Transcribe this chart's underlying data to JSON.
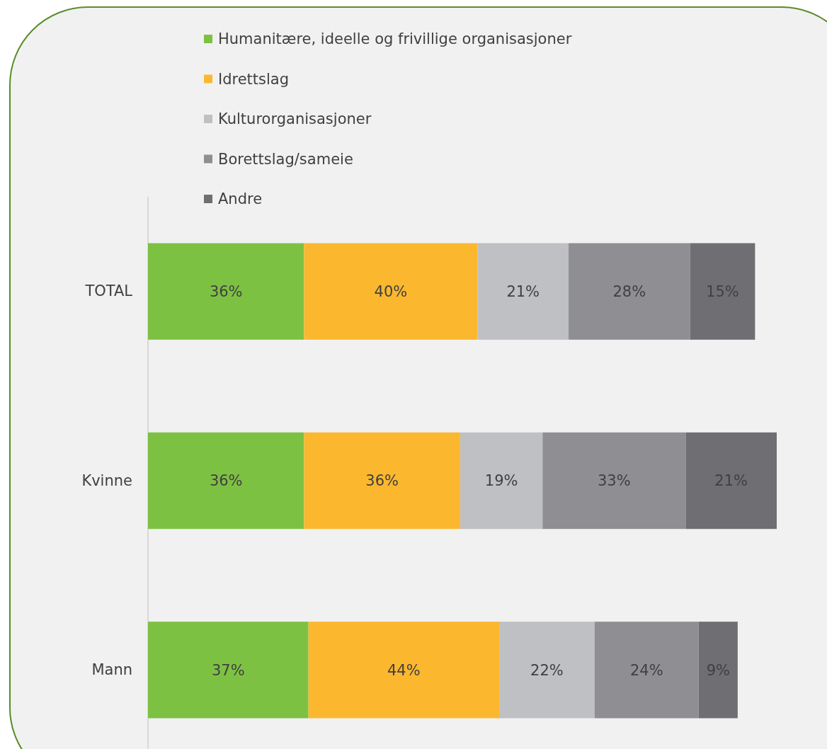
{
  "chart_data": {
    "type": "bar",
    "orientation": "horizontal",
    "stacked": true,
    "legend": "top",
    "categories": [
      "TOTAL",
      "Kvinne",
      "Mann"
    ],
    "series": [
      {
        "name": "Humanitære, ideelle og frivillige organisasjoner",
        "color": "#7dc143",
        "values": [
          36,
          36,
          37
        ],
        "value_labels": [
          "36%",
          "36%",
          "37%"
        ]
      },
      {
        "name": "Idrettslag",
        "color": "#fbb82e",
        "values": [
          40,
          36,
          44
        ],
        "value_labels": [
          "40%",
          "36%",
          "44%"
        ]
      },
      {
        "name": "Kulturorganisasjoner",
        "color": "#bfc0c3",
        "values": [
          21,
          19,
          22
        ],
        "value_labels": [
          "21%",
          "19%",
          "22%"
        ]
      },
      {
        "name": "Borettslag/sameie",
        "color": "#8f8e93",
        "values": [
          28,
          33,
          24
        ],
        "value_labels": [
          "28%",
          "33%",
          "24%"
        ]
      },
      {
        "name": "Andre",
        "color": "#6f6e73",
        "values": [
          15,
          21,
          9
        ],
        "value_labels": [
          "15%",
          "21%",
          "9%"
        ]
      }
    ]
  }
}
